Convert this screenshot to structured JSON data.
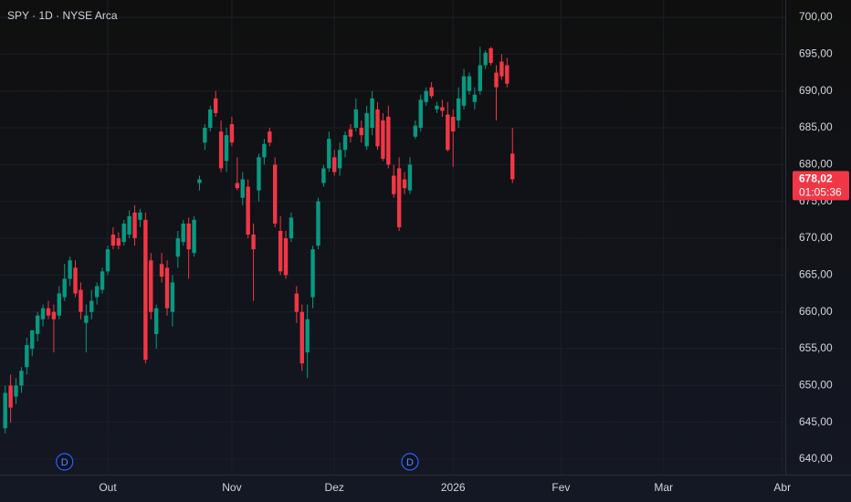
{
  "chart_data": {
    "type": "candlestick",
    "title": "SPY · 1D · NYSE Arca",
    "up_color": "#089981",
    "down_color": "#f23645",
    "grid": true,
    "categories": [
      null,
      null,
      null,
      null,
      null,
      null,
      null,
      null,
      null,
      null,
      null,
      null,
      null,
      null,
      null,
      null,
      null,
      null,
      null,
      "Out",
      null,
      null,
      null,
      null,
      null,
      null,
      null,
      null,
      null,
      null,
      null,
      null,
      null,
      null,
      null,
      null,
      null,
      null,
      null,
      null,
      null,
      null,
      "Nov",
      null,
      null,
      null,
      null,
      null,
      null,
      null,
      null,
      null,
      null,
      null,
      null,
      null,
      null,
      null,
      null,
      null,
      null,
      "Dez",
      null,
      null,
      null,
      null,
      null,
      null,
      null,
      null,
      null,
      null,
      null,
      null,
      null,
      null,
      null,
      null,
      null,
      null,
      null,
      null,
      null,
      "2026",
      null,
      null,
      null,
      null,
      null,
      null,
      null,
      null,
      null,
      null,
      null,
      null,
      null,
      null,
      null,
      null,
      null,
      null,
      null,
      "Fev",
      null,
      null,
      null,
      null,
      null,
      null,
      null,
      null,
      null,
      null,
      null,
      null,
      null,
      null,
      null,
      null,
      null,
      null,
      "Mar",
      null,
      null,
      null,
      null,
      null,
      null,
      null,
      null,
      null,
      null,
      null,
      null,
      null,
      null,
      null,
      null,
      null,
      null,
      null,
      null,
      null,
      "Abr"
    ],
    "open": [
      644.2,
      650,
      648.5,
      650,
      652.5,
      655,
      657,
      659,
      660.5,
      660,
      659.5,
      662,
      664.5,
      666,
      663,
      658.5,
      660,
      662,
      663,
      665.5,
      670.5,
      670,
      669.5,
      670.5,
      673.5,
      672.5,
      672.5,
      667,
      657,
      666.5,
      666,
      660,
      667.5,
      669.5,
      672,
      668,
      677.5,
      683,
      685,
      689,
      684.5,
      680.5,
      685.5,
      677.5,
      675.5,
      677,
      670.5,
      676.5,
      681,
      684.5,
      680,
      671,
      670,
      670,
      662.5,
      660,
      654.5,
      662,
      669,
      677.5,
      679.5,
      681,
      679.5,
      682,
      684.8,
      685,
      685,
      682.5,
      685,
      687.5,
      686,
      686.5,
      678.5,
      679.5,
      678,
      676.5,
      683.8,
      685,
      688.5,
      690.5,
      687.5,
      687.8,
      686.8,
      686.5,
      686,
      688,
      690,
      688.5,
      690,
      693.5,
      695.8,
      692.5,
      694,
      693.5,
      681.5,
      null,
      null,
      null,
      null,
      null,
      null,
      null,
      null,
      null,
      null,
      null,
      null,
      null,
      null,
      null,
      null,
      null,
      null,
      null,
      null,
      null,
      null,
      null,
      null,
      null,
      null,
      null,
      null,
      null,
      null,
      null,
      null,
      null,
      null,
      null,
      null,
      null,
      null,
      null,
      null,
      null,
      null,
      null,
      null,
      null,
      null,
      null,
      null,
      null,
      null
    ],
    "high": [
      650,
      651.5,
      651,
      652.5,
      656.5,
      657.5,
      660,
      661,
      661.5,
      661,
      663.5,
      666.5,
      667.5,
      667,
      664,
      661,
      663,
      664,
      666,
      669,
      671.5,
      670.8,
      672.5,
      673.8,
      674.5,
      674,
      673.5,
      668,
      661,
      668,
      667,
      665,
      671,
      672.5,
      672.8,
      673,
      678.5,
      685.5,
      688,
      690,
      686,
      685,
      686.5,
      681,
      679,
      678,
      672,
      681.5,
      683.5,
      685,
      681,
      673,
      671,
      673.5,
      663.5,
      661,
      661,
      669,
      675.5,
      680,
      684.5,
      682,
      683,
      684.5,
      685.5,
      689,
      686,
      688,
      690,
      688.5,
      687,
      688,
      680,
      681,
      679,
      681,
      686,
      689.5,
      690.5,
      691.2,
      688.5,
      688.8,
      688.5,
      687.5,
      690.5,
      693,
      692.5,
      690.5,
      696,
      695.5,
      696,
      693.5,
      695,
      694.5,
      685,
      null,
      null,
      null,
      null,
      null,
      null,
      null,
      null,
      null,
      null,
      null,
      null,
      null,
      null,
      null,
      null,
      null,
      null,
      null,
      null,
      null,
      null,
      null,
      null,
      null,
      null,
      null,
      null,
      null,
      null,
      null,
      null,
      null,
      null,
      null,
      null,
      null,
      null,
      null,
      null,
      null,
      null,
      null,
      null,
      null,
      null,
      null,
      null,
      null,
      null
    ],
    "low": [
      643.5,
      645,
      647.5,
      649,
      651.5,
      654,
      656,
      658,
      659,
      654.5,
      659,
      661.5,
      663.5,
      662,
      659,
      654.5,
      659,
      661,
      662.5,
      665,
      668.5,
      668.5,
      669,
      670,
      669,
      671.5,
      653,
      659,
      655,
      664,
      659.5,
      658,
      666,
      669,
      664.5,
      667.5,
      676.5,
      682,
      684.5,
      686.5,
      679,
      679,
      682.5,
      676.5,
      674.5,
      670,
      661.5,
      675,
      680,
      682.5,
      671.5,
      665,
      664.5,
      669.5,
      658.5,
      652,
      651,
      660.5,
      668.5,
      677,
      679,
      678.5,
      678.5,
      681,
      683,
      684.5,
      683,
      682,
      684,
      682,
      680.5,
      679.5,
      675.5,
      671,
      676,
      676,
      683.5,
      684.5,
      688,
      689,
      687,
      686.5,
      681.8,
      679.7,
      685,
      687.5,
      689.5,
      687.5,
      689.5,
      693,
      693.5,
      686,
      691.5,
      690.5,
      677.5,
      null,
      null,
      null,
      null,
      null,
      null,
      null,
      null,
      null,
      null,
      null,
      null,
      null,
      null,
      null,
      null,
      null,
      null,
      null,
      null,
      null,
      null,
      null,
      null,
      null,
      null,
      null,
      null,
      null,
      null,
      null,
      null,
      null,
      null,
      null,
      null,
      null,
      null,
      null,
      null,
      null,
      null,
      null,
      null,
      null,
      null,
      null,
      null,
      null,
      null
    ],
    "close": [
      649,
      647,
      650,
      652,
      655.5,
      657.5,
      659.5,
      660.5,
      659.5,
      659,
      662.5,
      664.5,
      667,
      662.5,
      660,
      659.5,
      661.5,
      663.5,
      665.5,
      668.5,
      669,
      669,
      672,
      673,
      670,
      673.5,
      653.5,
      660,
      660.5,
      664.8,
      660.5,
      664,
      670,
      672,
      668.5,
      672.5,
      678,
      685,
      687.5,
      687,
      679.5,
      684,
      683,
      676.8,
      678,
      670.5,
      668.5,
      681,
      682.8,
      683,
      672,
      665.5,
      665,
      672.8,
      660,
      653,
      659,
      668.5,
      675,
      679.5,
      683.5,
      679,
      682,
      684,
      683.8,
      687.5,
      684,
      687,
      689,
      682.5,
      680.8,
      680,
      676,
      671.5,
      676.8,
      680,
      685.3,
      688.8,
      690,
      689.3,
      688,
      687.3,
      682,
      684.5,
      689,
      692,
      692,
      689.5,
      693.5,
      695.2,
      693.8,
      690.5,
      692,
      691,
      678.02,
      null,
      null,
      null,
      null,
      null,
      null,
      null,
      null,
      null,
      null,
      null,
      null,
      null,
      null,
      null,
      null,
      null,
      null,
      null,
      null,
      null,
      null,
      null,
      null,
      null,
      null,
      null,
      null,
      null,
      null,
      null,
      null,
      null,
      null,
      null,
      null,
      null,
      null,
      null,
      null,
      null,
      null,
      null,
      null,
      null,
      null,
      null,
      null,
      null,
      null
    ],
    "ylim": [
      637.9,
      702.36
    ],
    "yticks": [
      {
        "value": 640,
        "label": "640,00"
      },
      {
        "value": 645,
        "label": "645,00"
      },
      {
        "value": 650,
        "label": "650,00"
      },
      {
        "value": 655,
        "label": "655,00"
      },
      {
        "value": 660,
        "label": "660,00"
      },
      {
        "value": 665,
        "label": "665,00"
      },
      {
        "value": 670,
        "label": "670,00"
      },
      {
        "value": 675,
        "label": "675,00"
      },
      {
        "value": 680,
        "label": "680,00"
      },
      {
        "value": 685,
        "label": "685,00"
      },
      {
        "value": 690,
        "label": "690,00"
      },
      {
        "value": 695,
        "label": "695,00"
      },
      {
        "value": 700,
        "label": "700,00"
      }
    ],
    "last_price": {
      "value": 678.02,
      "label": "678,02"
    },
    "countdown": "01:05:36",
    "events": [
      {
        "x": 11,
        "label": "D"
      },
      {
        "x": 75,
        "label": "D"
      }
    ]
  }
}
